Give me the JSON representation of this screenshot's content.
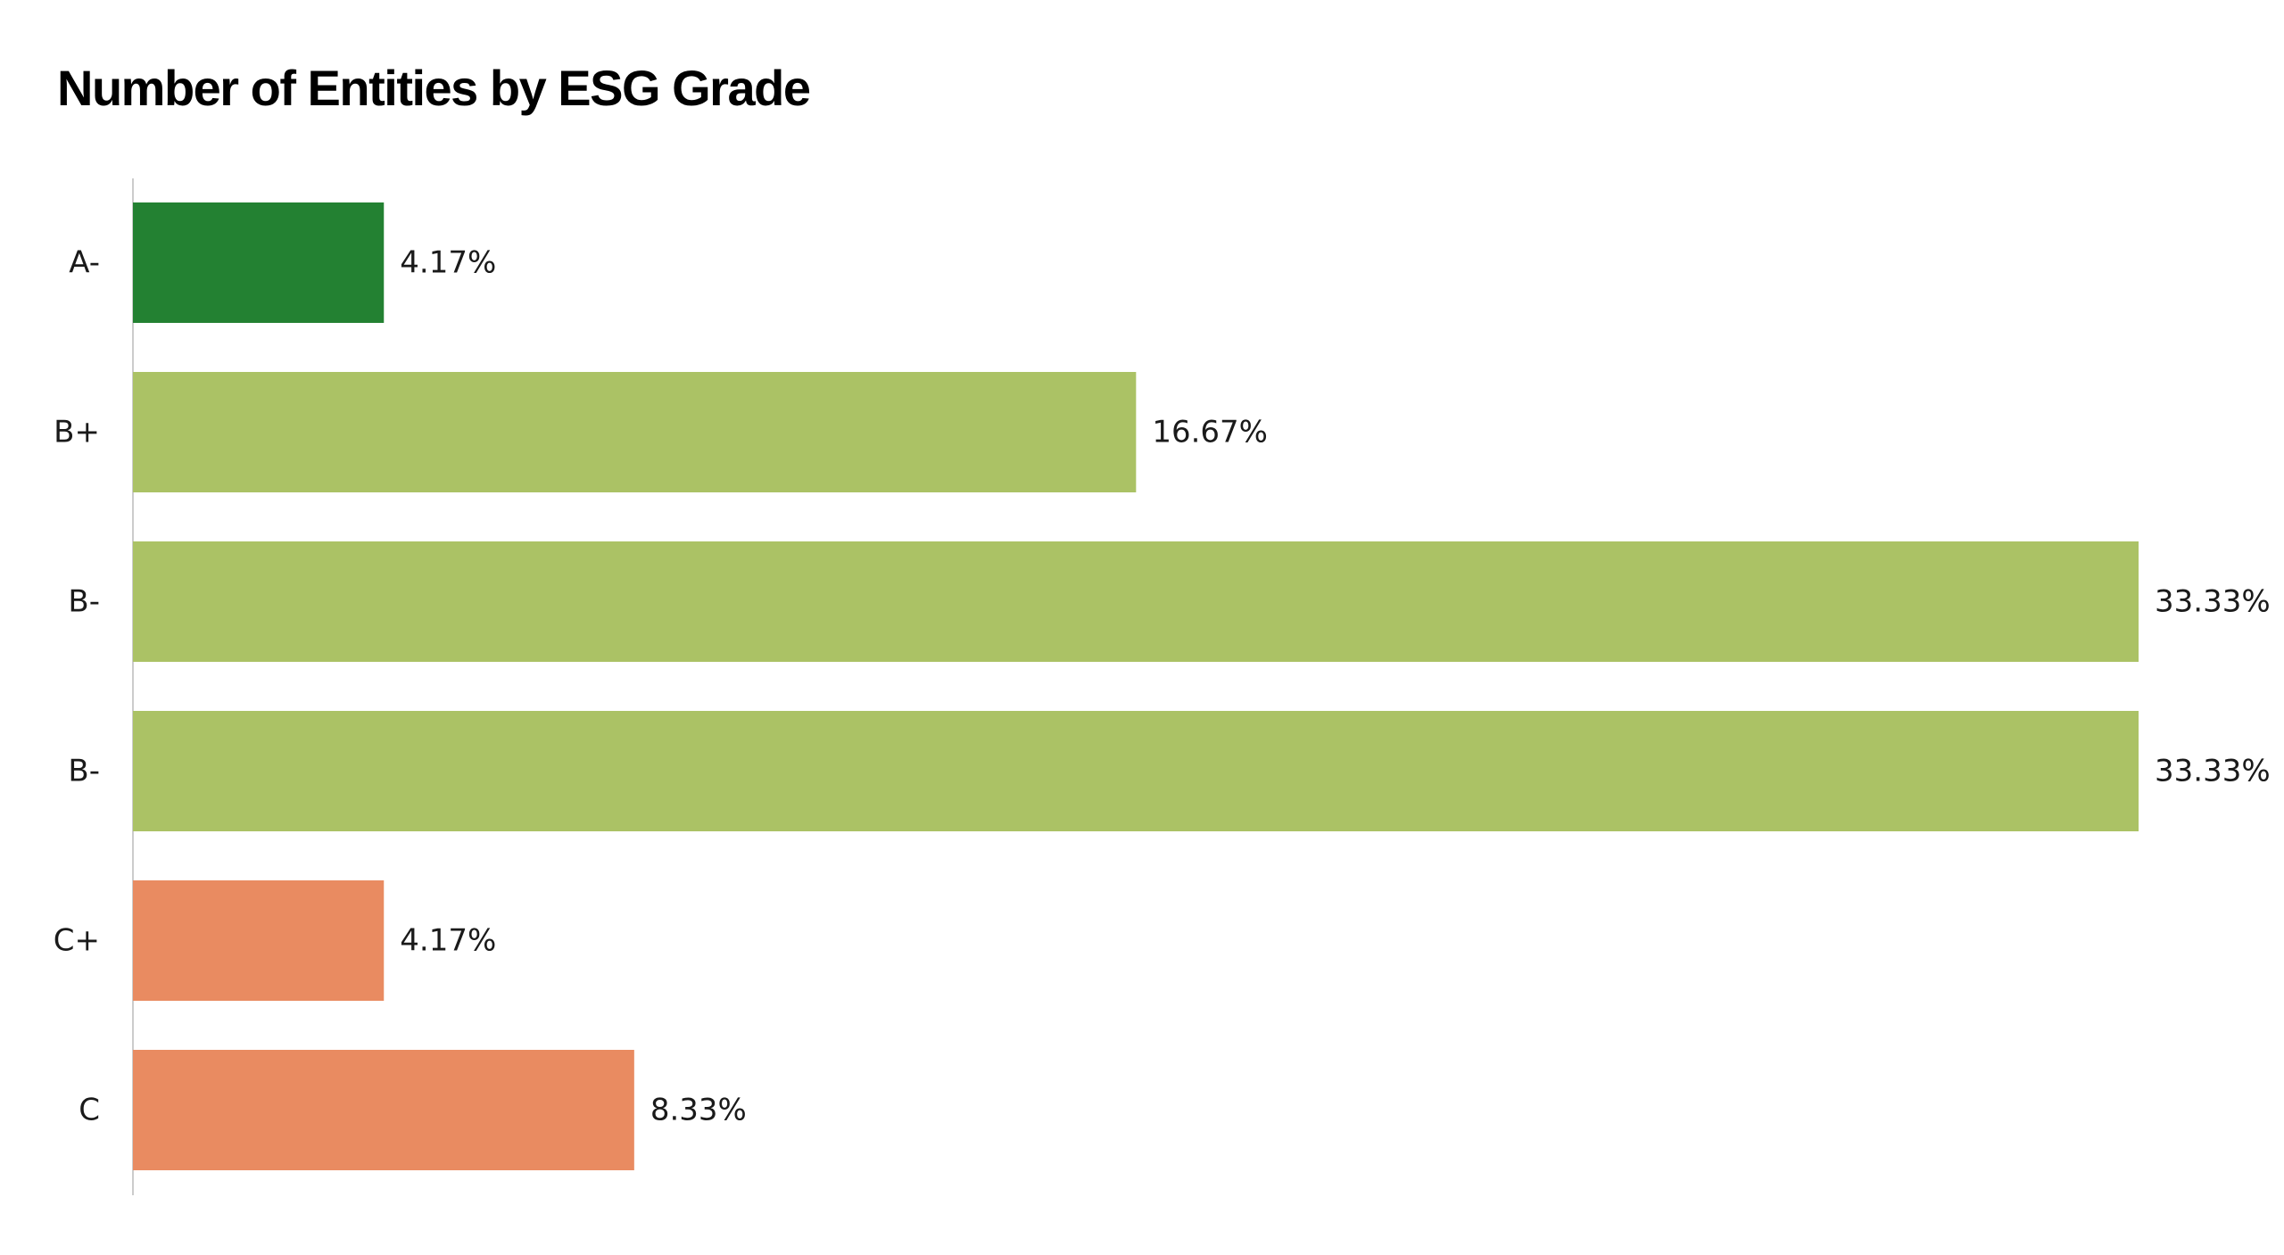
{
  "chart_data": {
    "type": "bar",
    "orientation": "horizontal",
    "title": "Number of Entities by ESG Grade",
    "categories": [
      "A-",
      "B+",
      "B-",
      "B-",
      "C+",
      "C"
    ],
    "values": [
      4.17,
      16.67,
      33.33,
      33.33,
      4.17,
      8.33
    ],
    "value_labels": [
      "4.17%",
      "16.67%",
      "33.33%",
      "33.33%",
      "4.17%",
      "8.33%"
    ],
    "bar_colors": [
      "#238132",
      "#abc265",
      "#abc265",
      "#abc265",
      "#e98b61",
      "#e98b61"
    ],
    "xlim": [
      0,
      33.33
    ],
    "xlabel": "",
    "ylabel": "",
    "grid": false,
    "legend": "none"
  },
  "colors": {
    "axis_line": "#cccccc",
    "text": "#1a1a1a"
  }
}
